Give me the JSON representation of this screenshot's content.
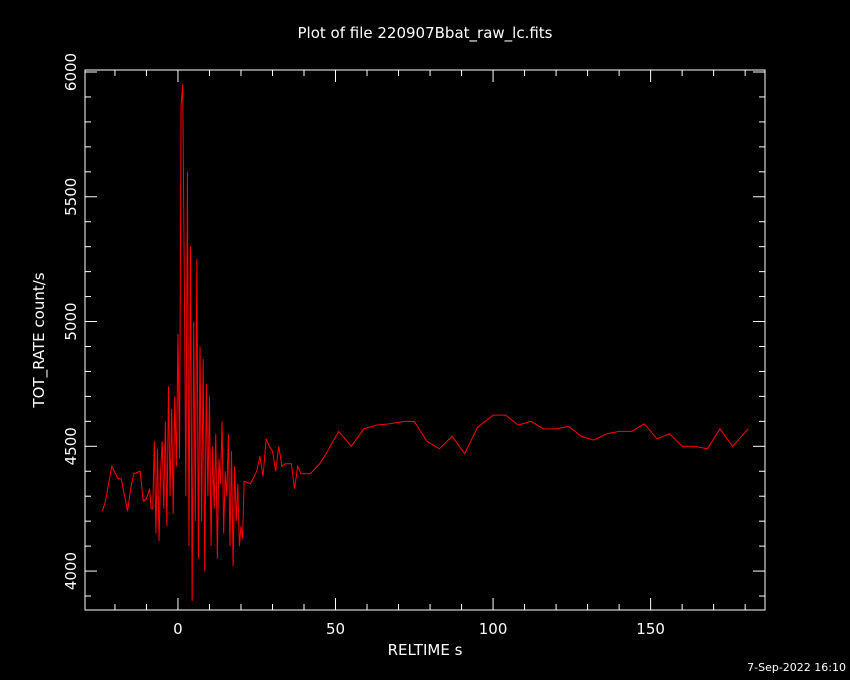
{
  "chart_data": {
    "type": "line",
    "title": "Plot of file 220907Bbat_raw_lc.fits",
    "x_label": "RELTIME  s",
    "y_label": "TOT_RATE  count/s",
    "footer": "7-Sep-2022 16:10",
    "color": "#ff0000",
    "x": [
      -24,
      -23,
      -21,
      -19,
      -18,
      -16,
      -15,
      -14,
      -12,
      -11,
      -10,
      -9,
      -8.5,
      -8,
      -7.5,
      -7,
      -6.5,
      -6,
      -5.5,
      -5,
      -4.5,
      -4,
      -3.5,
      -3,
      -2.5,
      -2,
      -1.5,
      -1,
      -0.5,
      0,
      0.5,
      1,
      1.5,
      2,
      2.5,
      3,
      3.5,
      4,
      4.5,
      5,
      5.5,
      6,
      6.5,
      7,
      7.5,
      8,
      8.5,
      9,
      9.5,
      10,
      10.5,
      11,
      11.5,
      12,
      12.5,
      13,
      13.5,
      14,
      14.5,
      15,
      15.5,
      16,
      16.5,
      17,
      17.5,
      18,
      18.5,
      19,
      19.5,
      20,
      20.5,
      21,
      23,
      25,
      26,
      27,
      28,
      29,
      30,
      31,
      32,
      33,
      34,
      36,
      37,
      38,
      39,
      42,
      45,
      47,
      51,
      55,
      59,
      63,
      67,
      72,
      75,
      79,
      83,
      87,
      91,
      95,
      100,
      104,
      108,
      112,
      116,
      120,
      124,
      128,
      132,
      136,
      140,
      144,
      148,
      152,
      156,
      160,
      164,
      168,
      172,
      176,
      181
    ],
    "values": [
      4240,
      4280,
      4420,
      4370,
      4370,
      4240,
      4330,
      4390,
      4400,
      4280,
      4290,
      4330,
      4250,
      4250,
      4520,
      4150,
      4490,
      4120,
      4400,
      4520,
      4250,
      4600,
      4180,
      4740,
      4300,
      4650,
      4230,
      4700,
      4420,
      4950,
      4450,
      5870,
      5950,
      5200,
      4300,
      5600,
      4100,
      5300,
      3880,
      5000,
      4200,
      5250,
      4050,
      4900,
      4200,
      4850,
      4000,
      4750,
      4300,
      4700,
      4100,
      4500,
      4250,
      4550,
      4050,
      4450,
      4350,
      4600,
      4150,
      4400,
      4300,
      4550,
      4100,
      4480,
      4020,
      4420,
      4200,
      4350,
      4100,
      4180,
      4130,
      4360,
      4350,
      4400,
      4460,
      4380,
      4530,
      4500,
      4480,
      4400,
      4500,
      4420,
      4430,
      4430,
      4330,
      4420,
      4390,
      4390,
      4430,
      4470,
      4560,
      4500,
      4570,
      4585,
      4590,
      4600,
      4600,
      4520,
      4490,
      4540,
      4470,
      4575,
      4625,
      4625,
      4585,
      4600,
      4570,
      4570,
      4580,
      4540,
      4525,
      4550,
      4560,
      4560,
      4590,
      4530,
      4550,
      4500,
      4500,
      4490,
      4570,
      4500,
      4570
    ],
    "xlim": [
      -29.5,
      186.3
    ],
    "ylim": [
      3844,
      6008
    ],
    "xticks": [
      0,
      50,
      100,
      150
    ],
    "yticks": [
      4000,
      4500,
      5000,
      5500,
      6000
    ],
    "xticks_minor": [
      -20,
      -10,
      10,
      20,
      30,
      40,
      60,
      70,
      80,
      90,
      110,
      120,
      130,
      140,
      160,
      170,
      180
    ],
    "yticks_minor": [
      3900,
      4100,
      4200,
      4300,
      4400,
      4600,
      4700,
      4800,
      4900,
      5100,
      5200,
      5300,
      5400,
      5600,
      5700,
      5800,
      5900
    ]
  }
}
